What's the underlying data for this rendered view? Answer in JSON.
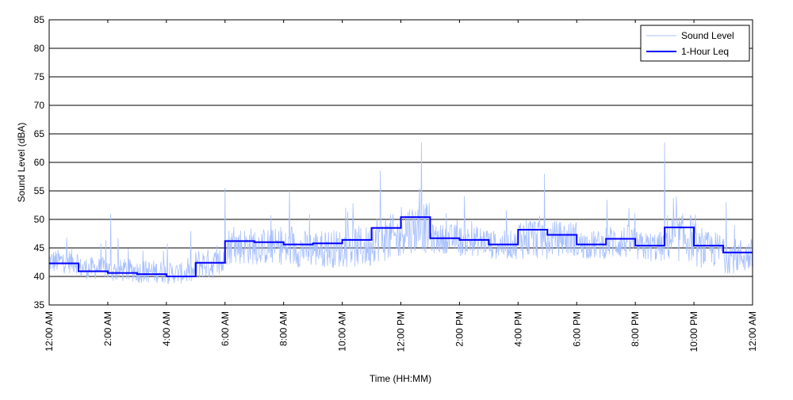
{
  "chart_data": {
    "type": "line",
    "title": "",
    "xlabel": "Time (HH:MM)",
    "ylabel": "Sound Level (dBA)",
    "ylim": [
      35,
      85
    ],
    "yticks": [
      35,
      40,
      45,
      50,
      55,
      60,
      65,
      70,
      75,
      80,
      85
    ],
    "xlim_hours": [
      0,
      24
    ],
    "xtick_hours": [
      0,
      2,
      4,
      6,
      8,
      10,
      12,
      14,
      16,
      18,
      20,
      22,
      24
    ],
    "xtick_labels": [
      "12:00 AM",
      "2:00 AM",
      "4:00 AM",
      "6:00 AM",
      "8:00 AM",
      "10:00 AM",
      "12:00 PM",
      "2:00 PM",
      "4:00 PM",
      "6:00 PM",
      "8:00 PM",
      "10:00 PM",
      "12:00 AM"
    ],
    "grid": "horizontal",
    "legend_position": "top-right",
    "series": [
      {
        "name": "Sound Level",
        "color": "#a8c0ff",
        "style": "thin noisy line, 1-minute samples (approximated)",
        "hourly_floor": [
          40.5,
          39.5,
          39,
          38.8,
          38.7,
          39.5,
          42,
          42,
          41.5,
          41.5,
          41.5,
          42.5,
          44,
          44,
          43.5,
          43,
          43,
          43.5,
          43,
          43,
          42.5,
          42.5,
          41.5,
          40.5
        ],
        "peaks": [
          [
            6.0,
            55.5
          ],
          [
            8.2,
            55
          ],
          [
            11.3,
            58.5
          ],
          [
            12.7,
            63.5
          ],
          [
            16.9,
            58
          ],
          [
            21.0,
            63.5
          ],
          [
            2.1,
            51
          ],
          [
            3.9,
            44.5
          ],
          [
            23.1,
            53
          ]
        ]
      },
      {
        "name": "1-Hour Leq",
        "color": "#0000ff",
        "style": "step",
        "values": [
          42.3,
          40.9,
          40.6,
          40.4,
          40.0,
          42.4,
          46.2,
          46.0,
          45.6,
          45.8,
          46.4,
          48.5,
          50.4,
          46.7,
          46.4,
          45.6,
          48.2,
          47.3,
          45.6,
          46.6,
          45.4,
          48.6,
          45.4,
          44.2
        ]
      }
    ]
  }
}
